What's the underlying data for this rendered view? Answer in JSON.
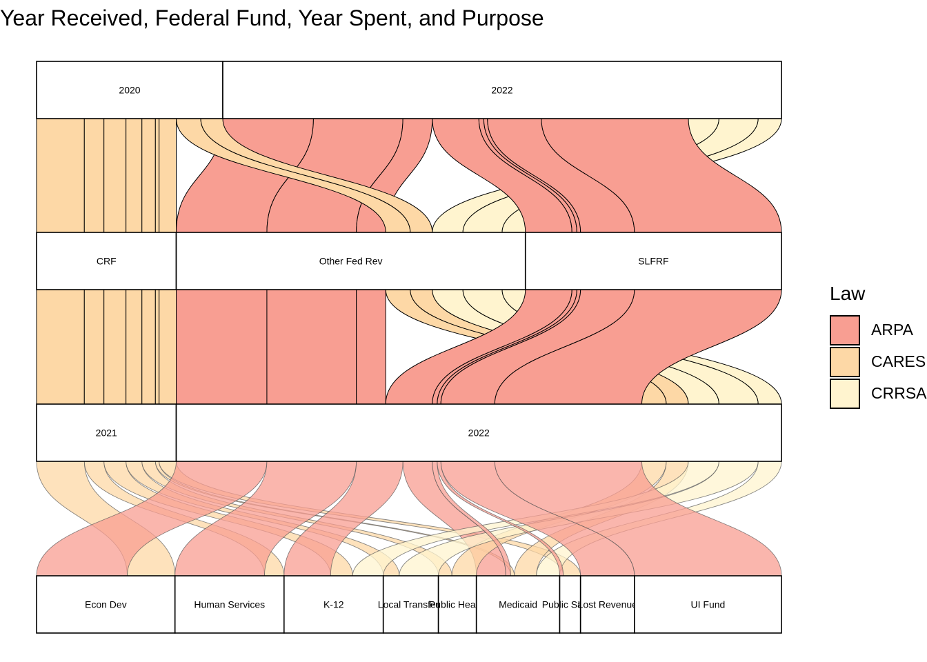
{
  "chart_data": {
    "type": "alluvial",
    "title": "Year Received, Federal Fund, Year Spent, and Purpose",
    "axes": [
      {
        "name": "Year Received",
        "strata": [
          "2020",
          "2022"
        ]
      },
      {
        "name": "Federal Fund",
        "strata": [
          "CRF",
          "Other Fed Rev",
          "SLFRF"
        ]
      },
      {
        "name": "Year Spent",
        "strata": [
          "2021",
          "2022"
        ]
      },
      {
        "name": "Purpose",
        "strata": [
          "Econ Dev",
          "Human Services",
          "K-12",
          "Local Transfers",
          "Public Health",
          "Medicaid",
          "Public Safety",
          "Lost Revenue",
          "UI Fund"
        ]
      }
    ],
    "legend": {
      "title": "Law",
      "placement": "right",
      "entries": [
        {
          "name": "ARPA",
          "color": "#F89E92"
        },
        {
          "name": "CARES",
          "color": "#FDD8A6"
        },
        {
          "name": "CRRSA",
          "color": "#FFF4CF"
        }
      ]
    },
    "flows": [
      {
        "law": "CARES",
        "fund": "CRF",
        "received": "2020",
        "spent": "2021",
        "purpose": "Econ Dev",
        "value": 7.8
      },
      {
        "law": "CARES",
        "fund": "CRF",
        "received": "2020",
        "spent": "2021",
        "purpose": "Human Services",
        "value": 3.2
      },
      {
        "law": "CARES",
        "fund": "CRF",
        "received": "2020",
        "spent": "2021",
        "purpose": "K-12",
        "value": 3.6
      },
      {
        "law": "CARES",
        "fund": "CRF",
        "received": "2020",
        "spent": "2021",
        "purpose": "Local Transfers",
        "value": 2.6
      },
      {
        "law": "CARES",
        "fund": "CRF",
        "received": "2020",
        "spent": "2021",
        "purpose": "Public Health",
        "value": 2.2
      },
      {
        "law": "CARES",
        "fund": "CRF",
        "received": "2020",
        "spent": "2021",
        "purpose": "Medicaid",
        "value": 0.6
      },
      {
        "law": "CARES",
        "fund": "CRF",
        "received": "2020",
        "spent": "2021",
        "purpose": "Public Safety",
        "value": 2.8
      },
      {
        "law": "ARPA",
        "fund": "Other Fed Rev",
        "received": "2022",
        "spent": "2022",
        "purpose": "Econ Dev",
        "value": 14.8
      },
      {
        "law": "ARPA",
        "fund": "Other Fed Rev",
        "received": "2022",
        "spent": "2022",
        "purpose": "Human Services",
        "value": 14.6
      },
      {
        "law": "ARPA",
        "fund": "Other Fed Rev",
        "received": "2022",
        "spent": "2022",
        "purpose": "Medicaid",
        "value": 4.8
      },
      {
        "law": "CARES",
        "fund": "Other Fed Rev",
        "received": "2020",
        "spent": "2022",
        "purpose": "Public Health",
        "value": 4.0
      },
      {
        "law": "CARES",
        "fund": "Other Fed Rev",
        "received": "2020",
        "spent": "2022",
        "purpose": "Medicaid",
        "value": 3.6
      },
      {
        "law": "CRRSA",
        "fund": "Other Fed Rev",
        "received": "2022",
        "spent": "2022",
        "purpose": "K-12",
        "value": 5.0
      },
      {
        "law": "CRRSA",
        "fund": "Other Fed Rev",
        "received": "2022",
        "spent": "2022",
        "purpose": "Local Transfers",
        "value": 6.4
      },
      {
        "law": "CRRSA",
        "fund": "Other Fed Rev",
        "received": "2022",
        "spent": "2022",
        "purpose": "Medicaid",
        "value": 3.8
      },
      {
        "law": "ARPA",
        "fund": "SLFRF",
        "received": "2022",
        "spent": "2022",
        "purpose": "K-12",
        "value": 7.6
      },
      {
        "law": "ARPA",
        "fund": "SLFRF",
        "received": "2022",
        "spent": "2022",
        "purpose": "Medicaid",
        "value": 0.8
      },
      {
        "law": "ARPA",
        "fund": "SLFRF",
        "received": "2022",
        "spent": "2022",
        "purpose": "Public Safety",
        "value": 0.6
      },
      {
        "law": "ARPA",
        "fund": "SLFRF",
        "received": "2022",
        "spent": "2022",
        "purpose": "Lost Revenue",
        "value": 8.8
      },
      {
        "law": "ARPA",
        "fund": "SLFRF",
        "received": "2022",
        "spent": "2022",
        "purpose": "UI Fund",
        "value": 24.0
      }
    ],
    "grid": false
  }
}
